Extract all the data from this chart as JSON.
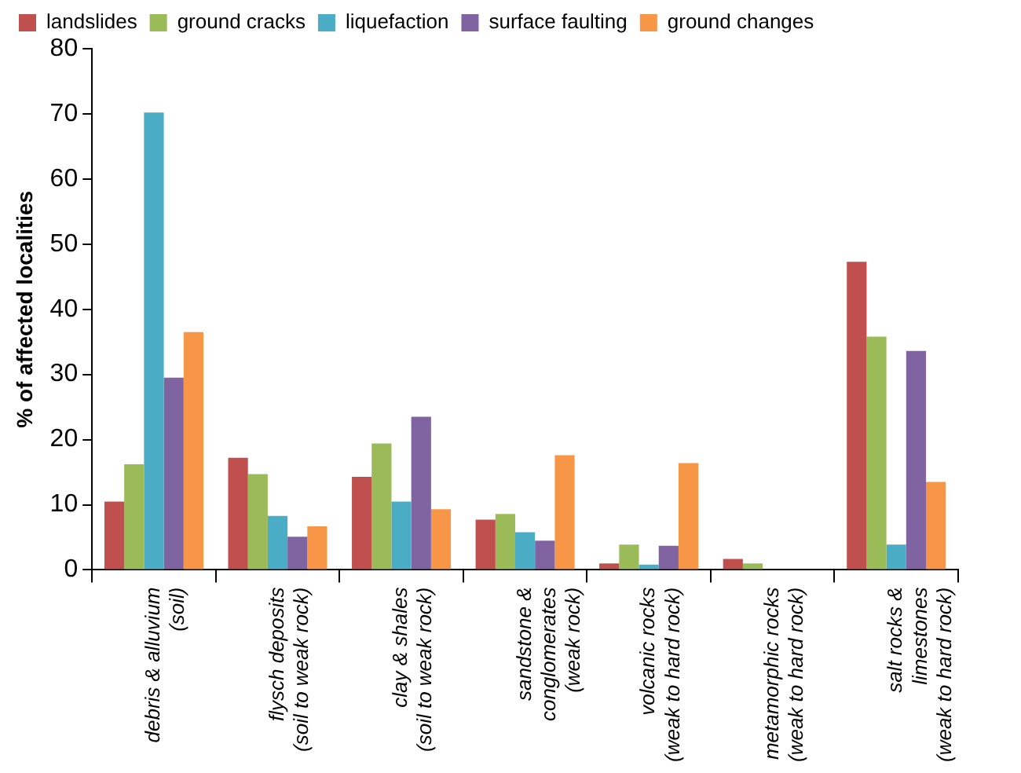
{
  "chart_data": {
    "type": "bar",
    "ylabel": "% of affected localities",
    "categories": [
      "debris & alluvium\n(soil)",
      "flysch deposits\n(soil to weak rock)",
      "clay & shales\n(soil to weak rock)",
      "sandstone &\nconglomerates\n(weak rock)",
      "volcanic rocks\n(weak to hard rock)",
      "metamorphic rocks\n(weak to hard rock)",
      "salt rocks &\nlimestones\n(weak to hard rock)"
    ],
    "series": [
      {
        "name": "landslides",
        "color": "#c0504d",
        "values": [
          10.5,
          17.2,
          14.3,
          7.7,
          1.0,
          1.7,
          47.3
        ]
      },
      {
        "name": "ground cracks",
        "color": "#9bbb59",
        "values": [
          16.2,
          14.7,
          19.4,
          8.6,
          3.9,
          1.0,
          35.8
        ]
      },
      {
        "name": "liquefaction",
        "color": "#4bacc6",
        "values": [
          70.2,
          8.3,
          10.5,
          5.8,
          0.8,
          0,
          3.9
        ]
      },
      {
        "name": "surface faulting",
        "color": "#8064a2",
        "values": [
          29.5,
          5.1,
          23.5,
          4.5,
          3.7,
          0,
          33.6
        ]
      },
      {
        "name": "ground changes",
        "color": "#f79646",
        "values": [
          36.5,
          6.7,
          9.3,
          17.6,
          16.4,
          0,
          13.5
        ]
      }
    ],
    "ylim": [
      0,
      80
    ],
    "yticks": [
      0,
      10,
      20,
      30,
      40,
      50,
      60,
      70,
      80
    ],
    "grid": false,
    "legend": "top"
  }
}
